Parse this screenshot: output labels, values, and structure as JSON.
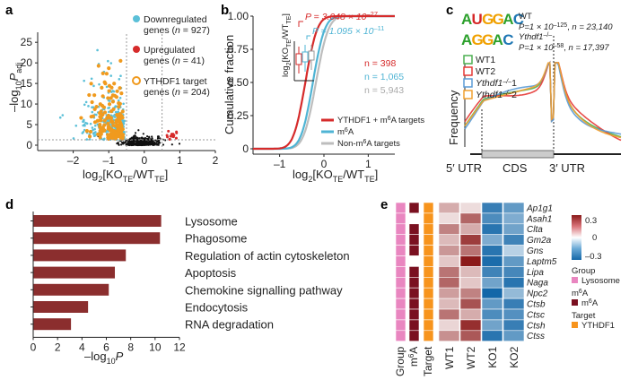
{
  "panel_labels": {
    "a": "a",
    "b": "b",
    "c": "c",
    "d": "d",
    "e": "e"
  },
  "colors": {
    "down": "#5bc0d8",
    "up": "#d62b2b",
    "target": "#f09a1e",
    "bg_points": "#111111",
    "m6a_target_line": "#d62b2b",
    "m6a_line": "#4fb4d4",
    "non_m6a_line": "#bdbdbd",
    "bar": "#8b2e2e",
    "heat_low": "#1467a8",
    "heat_mid": "#ffffff",
    "heat_high": "#8b1a1a",
    "group_lysosome": "#e986c0",
    "target_ythdf1": "#f7941d",
    "m6a_present": "#7a1020"
  },
  "chart_data": [
    {
      "panel": "a",
      "type": "scatter",
      "xlabel": {
        "pre": "log",
        "sub": "2",
        "mid": "[KO",
        "sub2": "TE",
        "mid2": "/WT",
        "sub3": "TE",
        "post": "]"
      },
      "ylabel": {
        "pre": "–log",
        "sub": "10",
        "mid": "P",
        "sub2": "adj"
      },
      "xlim": [
        -3,
        2
      ],
      "ylim": [
        0,
        27
      ],
      "xticks": [
        -2,
        -1,
        0,
        1,
        2
      ],
      "xtick_labels": [
        "–2",
        "–1",
        "0",
        "1",
        "2"
      ],
      "yticks": [
        0,
        5,
        10,
        15,
        20,
        25
      ],
      "ytick_labels": [
        "0",
        "5",
        "10",
        "15",
        "20",
        "25"
      ],
      "legend": [
        {
          "name": "Downregulated",
          "name2": "genes (",
          "ital": "n",
          "val": " = 927)",
          "color": "#5bc0d8"
        },
        {
          "name": "Upregulated",
          "name2": "genes (",
          "ital": "n",
          "val": " = 41)",
          "color": "#d62b2b"
        },
        {
          "name": "YTHDF1 target",
          "name2": "genes (",
          "ital": "n",
          "val": " = 204)",
          "color": "#f09a1e"
        }
      ]
    },
    {
      "panel": "b",
      "type": "line",
      "ylabel": "Cumulative fraction",
      "xlabel": {
        "pre": "log",
        "sub": "2",
        "mid": "[KO",
        "sub2": "TE",
        "mid2": "/WT",
        "sub3": "TE",
        "post": "]"
      },
      "xlim": [
        -1.6,
        1.6
      ],
      "ylim": [
        0,
        1
      ],
      "xticks": [
        -1,
        0,
        1
      ],
      "xtick_labels": [
        "–1",
        "0",
        "1"
      ],
      "yticks": [
        0,
        0.25,
        0.5,
        0.75,
        1
      ],
      "ytick_labels": [
        "0",
        "0.25",
        "0.50",
        "0.75",
        "1.00"
      ],
      "series": [
        {
          "name": "YTHDF1 + m6A targets",
          "label": "YTHDF1 + m",
          "sup": "6",
          "label2": "A targets",
          "n": "n = 398",
          "mu": -0.42,
          "s": 0.21,
          "color": "#d62b2b"
        },
        {
          "name": "m6A",
          "label": "m",
          "sup": "6",
          "label2": "A",
          "n": "n = 1,065",
          "mu": -0.25,
          "s": 0.21,
          "color": "#4fb4d4"
        },
        {
          "name": "Non-m6A targets",
          "label": "Non-m",
          "sup": "6",
          "label2": "A targets",
          "n": "n = 5,943",
          "mu": -0.18,
          "s": 0.22,
          "color": "#bdbdbd"
        }
      ],
      "pvalues": {
        "p1": "P = 3.048 × 10",
        "p1exp": "–27",
        "p2": "P = 1.095 × 10",
        "p2exp": "–11"
      },
      "inset": {
        "ylabel": "log",
        "ysub": "2",
        "ymid": "[KO",
        "ysub2": "TE",
        "ymid2": "/WT",
        "ysub3": "TE",
        "ypost": "]"
      }
    },
    {
      "panel": "c",
      "type": "line",
      "ylabel": "Frequency",
      "regions": [
        "5′ UTR",
        "CDS",
        "3′ UTR"
      ],
      "motifs": [
        {
          "seq": [
            "A",
            "U",
            "G",
            "G",
            "A",
            "C"
          ],
          "label": "WT",
          "p": "P=1 × 10",
          "pexp": "–125",
          "n": "n = 23,140"
        },
        {
          "seq": [
            "A",
            "G",
            "G",
            "A",
            "C"
          ],
          "label": "Ythdf1",
          "labelsup": "–/–",
          "p": "P=1 × 10",
          "pexp": "–58",
          "n": "n = 17,397"
        }
      ],
      "series": [
        {
          "name": "WT1",
          "color": "#4caf50"
        },
        {
          "name": "WT2",
          "color": "#e53935"
        },
        {
          "name": "Ythdf1–/–1",
          "label": "Ythdf1",
          "sup": "–/–",
          "tail": "1",
          "color": "#5b9bd5"
        },
        {
          "name": "Ythdf1–/–2",
          "label": "Ythdf1",
          "sup": "–/–",
          "tail": "2",
          "color": "#f0a030"
        }
      ]
    },
    {
      "panel": "d",
      "type": "bar",
      "orientation": "horizontal",
      "categories": [
        "Lysosome",
        "Phagosome",
        "Regulation of actin cytoskeleton",
        "Apoptosis",
        "Chemokine signalling pathway",
        "Endocytosis",
        "RNA degradation"
      ],
      "values": [
        10.5,
        10.4,
        7.6,
        6.7,
        6.2,
        4.5,
        3.1
      ],
      "xlim": [
        0,
        12
      ],
      "xticks": [
        0,
        2,
        4,
        6,
        8,
        10,
        12
      ],
      "xlabel": {
        "pre": "–log",
        "sub": "10",
        "mid": "P"
      }
    },
    {
      "panel": "e",
      "type": "heatmap",
      "rows": [
        "Ap1g1",
        "Asah1",
        "Clta",
        "Gm2a",
        "Gns",
        "Laptm5",
        "Lipa",
        "Naga",
        "Npc2",
        "Ctsb",
        "Ctsc",
        "Ctsh",
        "Ctss"
      ],
      "columns": [
        "WT1",
        "WT2",
        "KO1",
        "KO2"
      ],
      "annotation_columns": [
        "Group",
        "m6A",
        "Target"
      ],
      "annotation_labels": {
        "group": "Group",
        "m6a": "m",
        "m6a_sup": "6",
        "m6a_tail": "A",
        "target": "Target"
      },
      "m6a": [
        1,
        0,
        1,
        1,
        1,
        0,
        1,
        1,
        1,
        1,
        1,
        1,
        1
      ],
      "values": [
        [
          0.12,
          0.05,
          -0.28,
          -0.22
        ],
        [
          0.05,
          0.22,
          -0.25,
          -0.18
        ],
        [
          0.18,
          0.12,
          -0.3,
          -0.2
        ],
        [
          0.1,
          0.28,
          -0.18,
          -0.27
        ],
        [
          0.15,
          0.2,
          -0.3,
          -0.1
        ],
        [
          0.08,
          0.33,
          -0.32,
          -0.22
        ],
        [
          0.2,
          0.1,
          -0.27,
          -0.26
        ],
        [
          0.22,
          0.08,
          -0.2,
          -0.3
        ],
        [
          0.14,
          0.18,
          -0.33,
          -0.15
        ],
        [
          0.1,
          0.25,
          -0.22,
          -0.28
        ],
        [
          0.2,
          0.12,
          -0.25,
          -0.24
        ],
        [
          0.06,
          0.3,
          -0.2,
          -0.28
        ],
        [
          0.16,
          0.24,
          -0.3,
          -0.22
        ]
      ],
      "scale": {
        "max": "0.3",
        "mid": "0",
        "min": "–0.3"
      },
      "legend": {
        "group": "Group",
        "group_item": "Lysosome",
        "m6a": "m",
        "m6a_sup": "6",
        "m6a_tail": "A",
        "m6a_item": "m",
        "m6a_item_sup": "6",
        "m6a_item_tail": "A",
        "target": "Target",
        "target_item": "YTHDF1"
      }
    }
  ]
}
